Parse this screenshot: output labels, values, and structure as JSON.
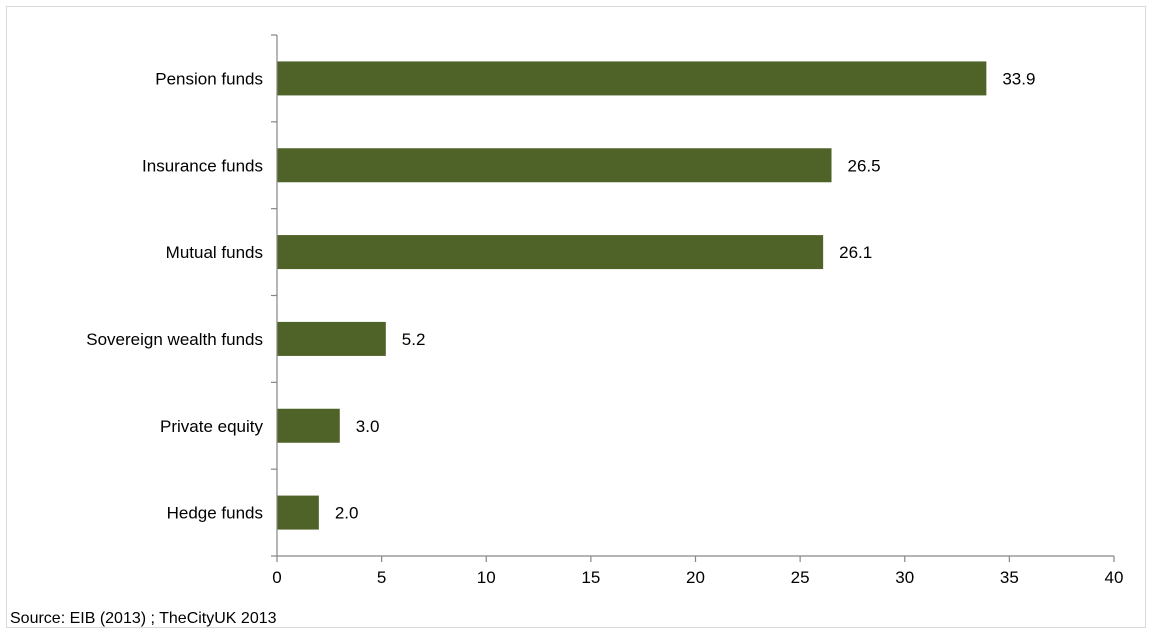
{
  "chart_data": {
    "type": "bar",
    "orientation": "horizontal",
    "categories": [
      "Pension funds",
      "Insurance funds",
      "Mutual funds",
      "Sovereign wealth funds",
      "Private equity",
      "Hedge funds"
    ],
    "values": [
      33.9,
      26.5,
      26.1,
      5.2,
      3.0,
      2.0
    ],
    "value_labels": [
      "33.9",
      "26.5",
      "26.1",
      "5.2",
      "3.0",
      "2.0"
    ],
    "xlim": [
      0,
      40
    ],
    "xticks": [
      0,
      5,
      10,
      15,
      20,
      25,
      30,
      35,
      40
    ],
    "grid": false,
    "bar_color": "#4f6228",
    "title": "",
    "xlabel": "",
    "ylabel": ""
  },
  "source_text": "Source: EIB (2013) ;  TheCityUK 2013"
}
